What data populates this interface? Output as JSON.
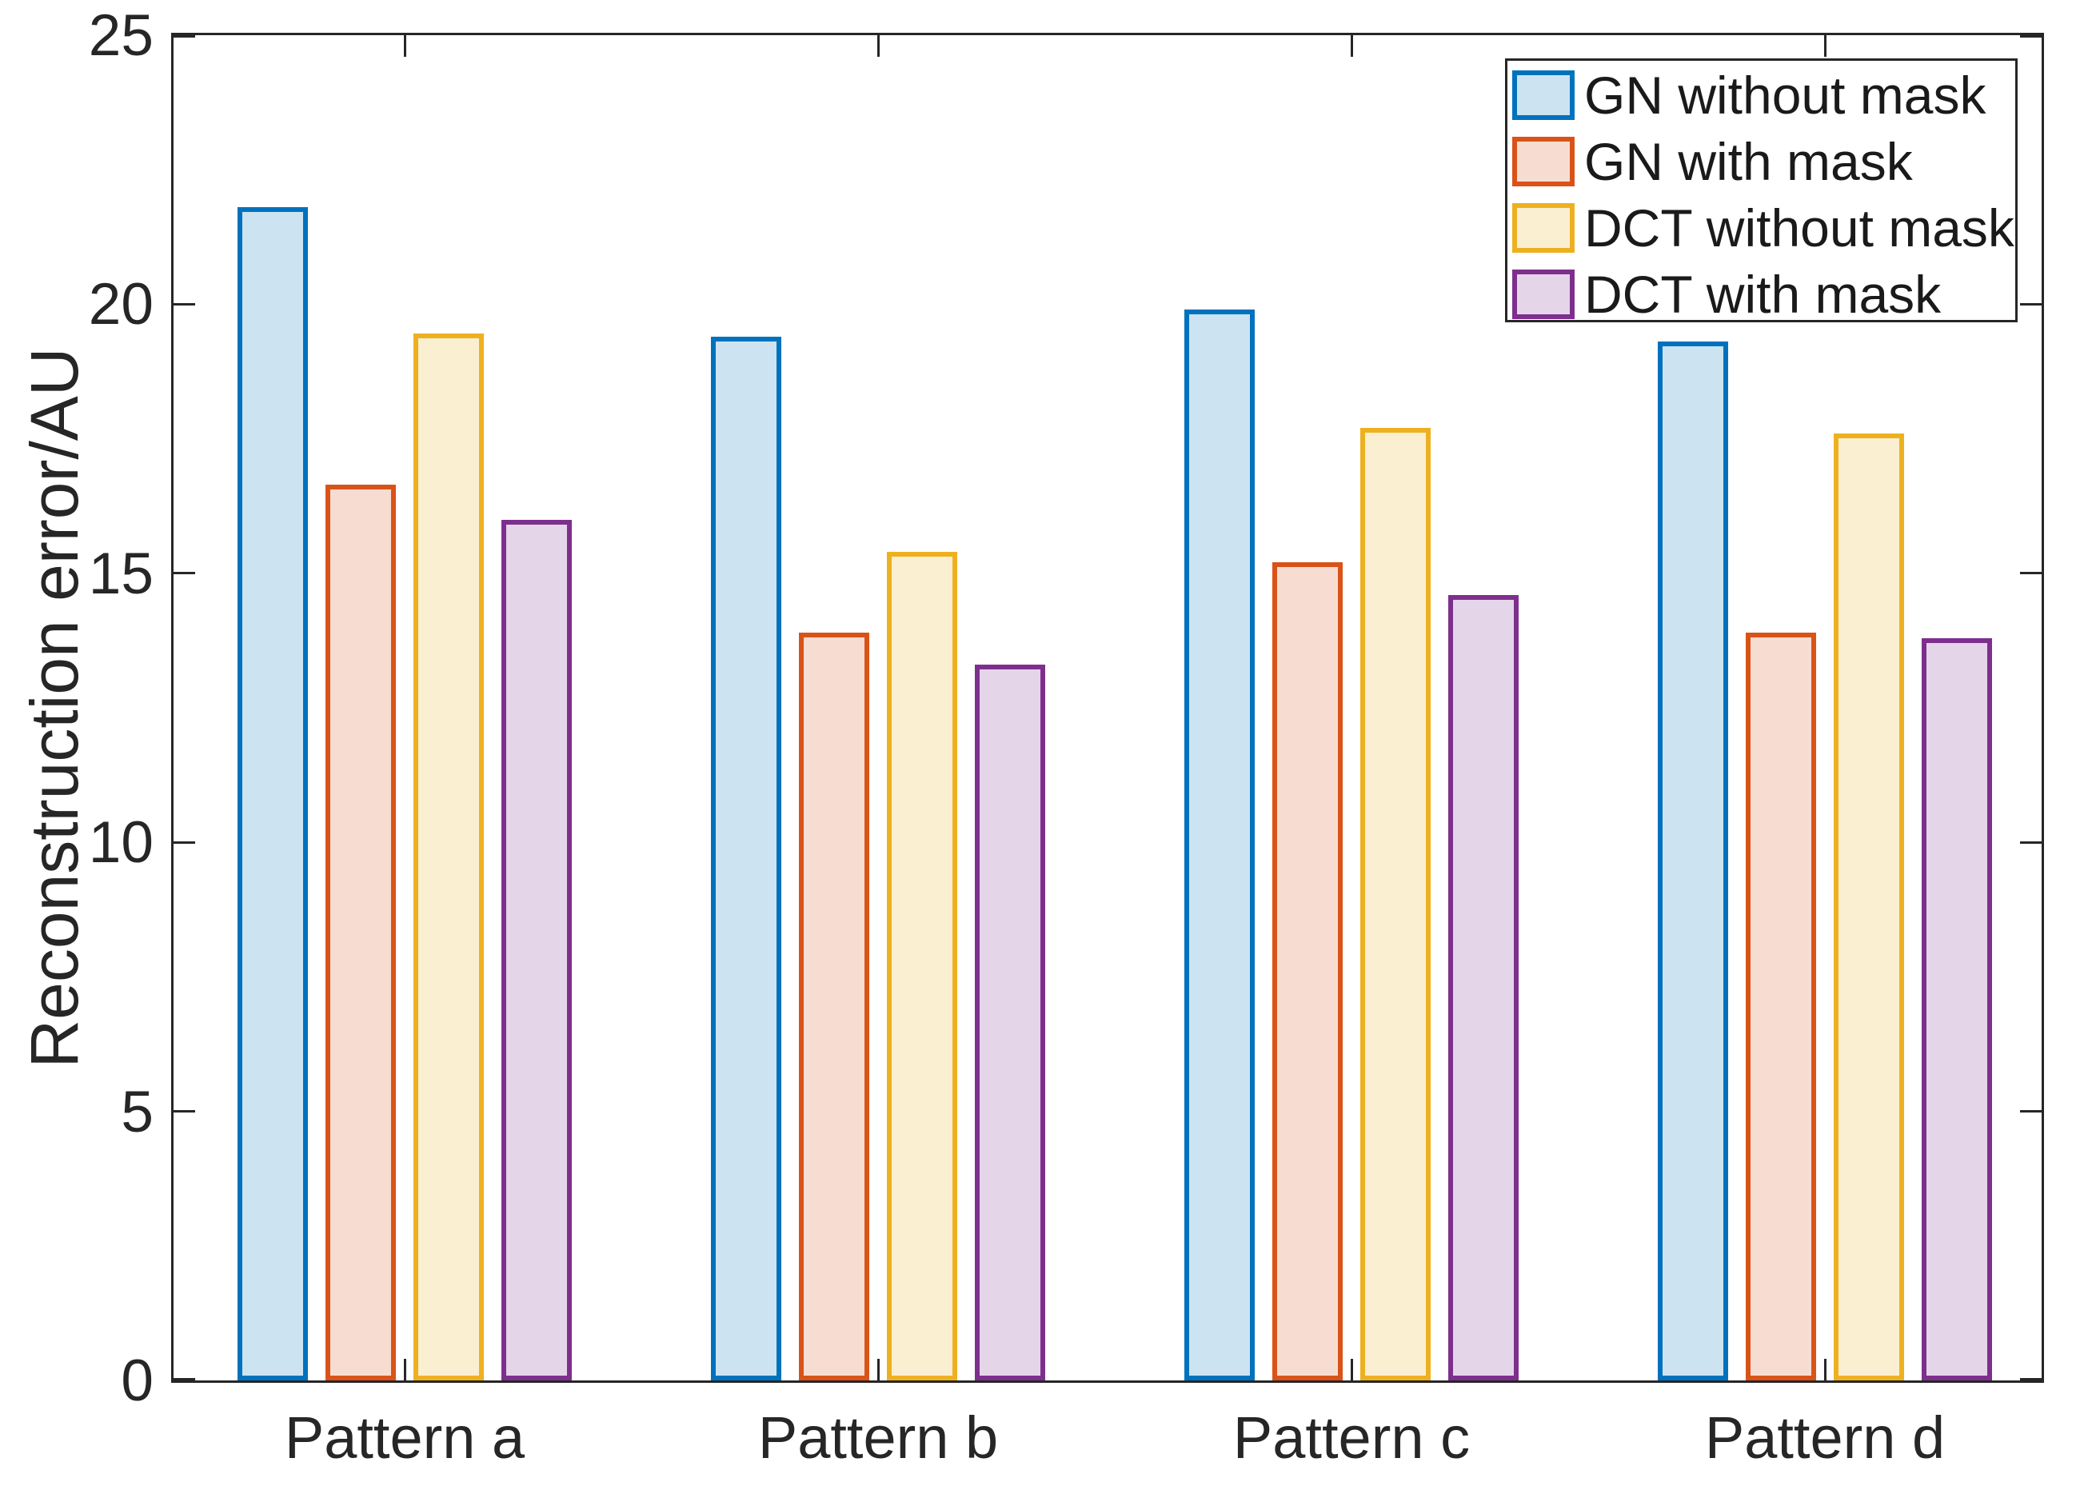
{
  "figure": {
    "background": "#ffffff",
    "axis_color": "#262626",
    "text_color": "#262626"
  },
  "chart_data": {
    "type": "bar",
    "title": "",
    "xlabel": "",
    "ylabel": "Reconstruction error/AU",
    "categories": [
      "Pattern a",
      "Pattern b",
      "Pattern c",
      "Pattern d"
    ],
    "series": [
      {
        "name": "GN without mask",
        "edge_color": "#0072BD",
        "fill_color": "#CCE3F2",
        "values": [
          21.8,
          19.4,
          19.9,
          19.3
        ]
      },
      {
        "name": "GN with mask",
        "edge_color": "#D95319",
        "fill_color": "#F7DDD1",
        "values": [
          16.65,
          13.9,
          15.2,
          13.9
        ]
      },
      {
        "name": "DCT without mask",
        "edge_color": "#EDB120",
        "fill_color": "#FBEFD2",
        "values": [
          19.45,
          15.4,
          17.7,
          17.6
        ]
      },
      {
        "name": "DCT with mask",
        "edge_color": "#7E2F8E",
        "fill_color": "#E5D5E8",
        "values": [
          16.0,
          13.3,
          14.6,
          13.8
        ]
      }
    ],
    "ylim": [
      0,
      25
    ],
    "yticks": [
      0,
      5,
      10,
      15,
      20,
      25
    ],
    "ytick_labels": [
      "0",
      "5",
      "10",
      "15",
      "20",
      "25"
    ],
    "grid": false,
    "legend_position": "top-right",
    "box": true,
    "tick_direction": "in"
  }
}
